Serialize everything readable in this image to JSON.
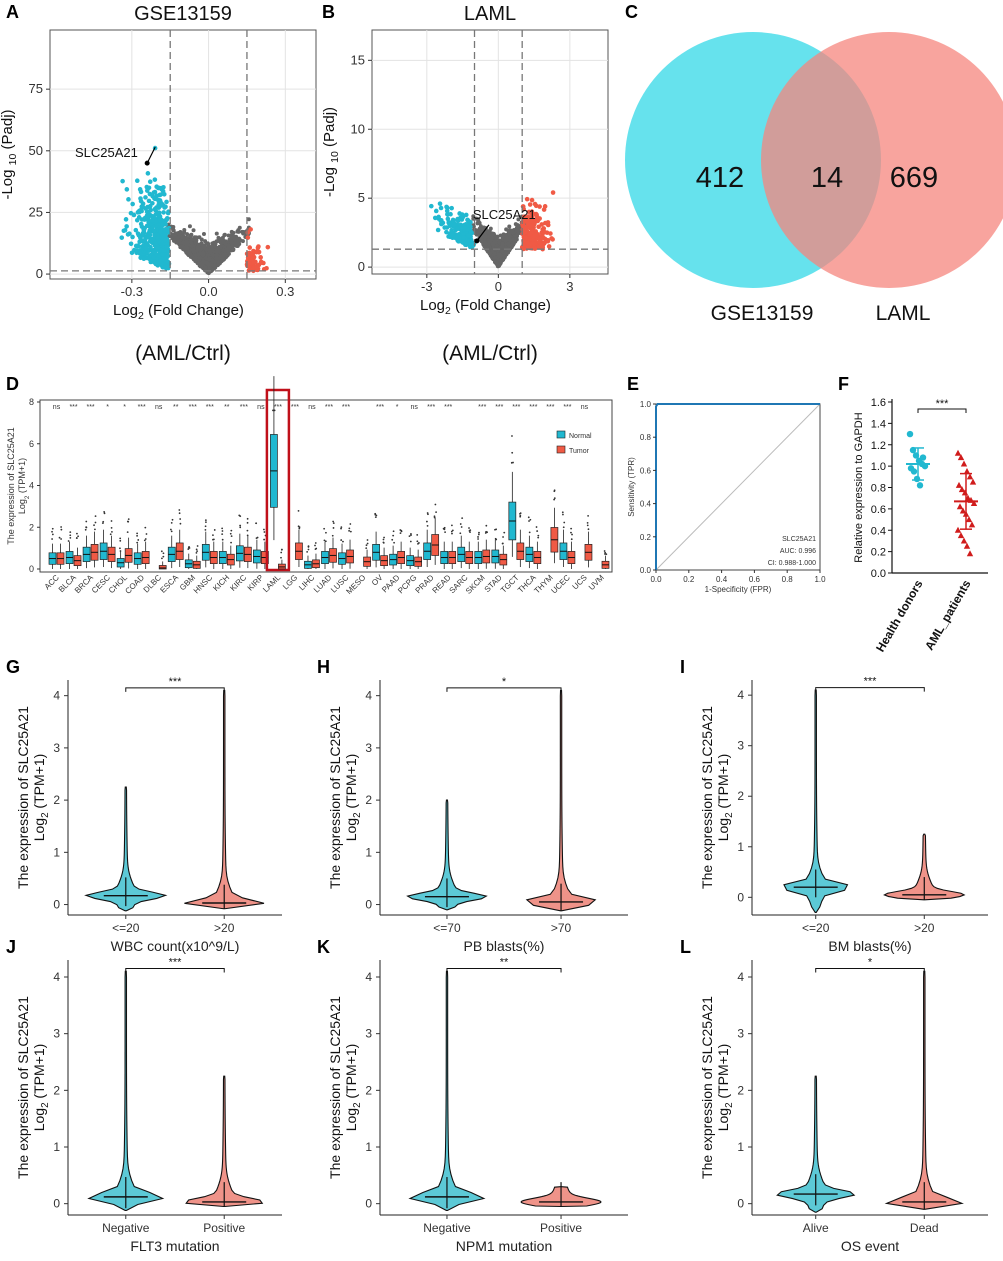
{
  "colors": {
    "cyan": "#21b8d0",
    "red": "#f05a45",
    "grey": "#666666",
    "venn_cyan": "#5ee0ec",
    "venn_red": "#f5857d",
    "violin_cyan": "#5cc9d6",
    "violin_red": "#ef9389",
    "roc_blue": "#1f77b4",
    "darkred": "#c0101a"
  },
  "panel_labels": [
    "A",
    "B",
    "C",
    "D",
    "E",
    "F",
    "G",
    "H",
    "I",
    "J",
    "K",
    "L"
  ],
  "chart_data": [
    {
      "id": "A",
      "type": "scatter",
      "subtitle": "volcano plot",
      "title": "GSE13159",
      "xlabel_pre": "Log",
      "xlabel_sub": "2",
      "xlabel_post": " (Fold Change)",
      "ylabel_pre": "-Log ",
      "ylabel_sub": "10",
      "ylabel_post": " (Padj)",
      "note": "(AML/Ctrl)",
      "x_ticks": [
        "-0.3",
        "0.0",
        "0.3"
      ],
      "x_tick_vals": [
        -0.3,
        0.0,
        0.3
      ],
      "y_ticks": [
        "0",
        "25",
        "50",
        "75"
      ],
      "y_tick_vals": [
        0,
        25,
        50,
        75
      ],
      "xlim": [
        -0.62,
        0.42
      ],
      "ylim": [
        -2,
        99
      ],
      "threshold_x": [
        -0.15,
        0.15
      ],
      "threshold_y": 1.3,
      "annotation": "SLC25A21",
      "annotation_point": [
        -0.24,
        45
      ]
    },
    {
      "id": "B",
      "type": "scatter",
      "subtitle": "volcano plot",
      "title": "LAML",
      "xlabel_pre": "Log",
      "xlabel_sub": "2",
      "xlabel_post": " (Fold Change)",
      "ylabel_pre": "-Log ",
      "ylabel_sub": "10",
      "ylabel_post": " (Padj)",
      "note": "(AML/Ctrl)",
      "x_ticks": [
        "-3",
        "0",
        "3"
      ],
      "x_tick_vals": [
        -3,
        0,
        3
      ],
      "y_ticks": [
        "0",
        "5",
        "10",
        "15"
      ],
      "y_tick_vals": [
        0,
        5,
        10,
        15
      ],
      "xlim": [
        -5.3,
        4.6
      ],
      "ylim": [
        -0.5,
        17.2
      ],
      "threshold_x": [
        -1,
        1
      ],
      "threshold_y": 1.3,
      "annotation": "SLC25A21",
      "annotation_point": [
        -0.9,
        1.9
      ]
    },
    {
      "id": "C",
      "type": "venn",
      "sets": [
        "GSE13159",
        "LAML"
      ],
      "left_only": "412",
      "overlap": "14",
      "right_only": "669"
    },
    {
      "id": "D",
      "type": "box",
      "ylabel_line1": "The expression of SLC25A21",
      "ylabel_line2_pre": "Log",
      "ylabel_line2_sub": "2",
      "ylabel_line2_post": " (TPM+1)",
      "y_ticks": [
        "0",
        "2",
        "4",
        "6",
        "8"
      ],
      "y_tick_vals": [
        0,
        2,
        4,
        6,
        8
      ],
      "ylim": [
        0,
        8
      ],
      "legend": [
        "Normal",
        "Tumor"
      ],
      "highlight": "LAML",
      "categories": [
        "ACC",
        "BLCA",
        "BRCA",
        "CESC",
        "CHOL",
        "COAD",
        "DLBC",
        "ESCA",
        "GBM",
        "HNSC",
        "KICH",
        "KIRC",
        "KIRP",
        "LAML",
        "LGG",
        "LIHC",
        "LUAD",
        "LUSC",
        "MESO",
        "OV",
        "PAAD",
        "PCPG",
        "PRAD",
        "READ",
        "SARC",
        "SKCM",
        "STAD",
        "TGCT",
        "THCA",
        "THYM",
        "UCEC",
        "UCS",
        "UVM"
      ],
      "significance": [
        "ns",
        "***",
        "***",
        "*",
        "*",
        "***",
        "ns",
        "**",
        "***",
        "***",
        "**",
        "***",
        "ns",
        "***",
        "***",
        "ns",
        "***",
        "***",
        "",
        "***",
        "*",
        "ns",
        "***",
        "***",
        "",
        "***",
        "***",
        "***",
        "***",
        "***",
        "***",
        "ns",
        ""
      ],
      "normal_median": [
        0.5,
        0.55,
        0.7,
        0.85,
        0.3,
        0.5,
        null,
        0.7,
        0.25,
        0.8,
        0.55,
        0.75,
        0.6,
        4.7,
        null,
        0.2,
        0.55,
        0.5,
        null,
        0.8,
        0.45,
        0.4,
        0.85,
        0.55,
        0.7,
        0.55,
        0.6,
        2.3,
        0.7,
        null,
        0.85,
        null,
        null
      ],
      "tumor_median": [
        0.5,
        0.4,
        0.8,
        0.7,
        0.65,
        0.55,
        0.05,
        0.85,
        0.2,
        0.55,
        0.45,
        0.7,
        0.55,
        0.1,
        0.85,
        0.25,
        0.65,
        0.6,
        0.35,
        0.4,
        0.55,
        0.35,
        1.15,
        0.55,
        0.55,
        0.6,
        0.45,
        0.85,
        0.55,
        1.4,
        0.55,
        0.8,
        0.2
      ]
    },
    {
      "id": "E",
      "type": "line",
      "xlabel": "1-Specificity (FPR)",
      "ylabel": "Sensitivity (TPR)",
      "x_ticks": [
        "0.0",
        "0.2",
        "0.4",
        "0.6",
        "0.8",
        "1.0"
      ],
      "x_tick_vals": [
        0,
        0.2,
        0.4,
        0.6,
        0.8,
        1.0
      ],
      "y_ticks": [
        "0.0",
        "0.2",
        "0.4",
        "0.6",
        "0.8",
        "1.0"
      ],
      "y_tick_vals": [
        0,
        0.2,
        0.4,
        0.6,
        0.8,
        1.0
      ],
      "x": [
        0,
        0,
        0.01,
        1.0
      ],
      "y": [
        0,
        0.985,
        1.0,
        1.0
      ],
      "legend": [
        "SLC25A21",
        "AUC: 0.996",
        "CI: 0.988-1.000"
      ]
    },
    {
      "id": "F",
      "type": "scatter",
      "subtitle": "dot plot with mean and SD",
      "ylabel": "Relative expression to GAPDH",
      "y_ticks": [
        "0.0",
        "0.2",
        "0.4",
        "0.6",
        "0.8",
        "1.0",
        "1.2",
        "1.4",
        "1.6"
      ],
      "y_tick_vals": [
        0,
        0.2,
        0.4,
        0.6,
        0.8,
        1.0,
        1.2,
        1.4,
        1.6
      ],
      "ylim": [
        0,
        1.6
      ],
      "categories": [
        "Health donors",
        "AML_patients"
      ],
      "significance": "***",
      "groups": [
        {
          "name": "Health donors",
          "mean": 1.02,
          "sd": 0.15,
          "values": [
            1.3,
            1.15,
            1.1,
            1.05,
            1.02,
            1.0,
            0.98,
            0.95,
            0.88,
            0.82,
            1.08
          ]
        },
        {
          "name": "AML_patients",
          "mean": 0.67,
          "sd": 0.26,
          "values": [
            1.12,
            1.08,
            1.02,
            0.95,
            0.9,
            0.85,
            0.82,
            0.78,
            0.75,
            0.7,
            0.68,
            0.65,
            0.62,
            0.58,
            0.55,
            0.5,
            0.45,
            0.4,
            0.35,
            0.3,
            0.25,
            0.18
          ]
        }
      ]
    },
    {
      "id": "G",
      "type": "violin",
      "ylabel_line1": "The expression of SLC25A21",
      "ylabel_line2_pre": "Log",
      "ylabel_line2_sub": "2",
      "ylabel_line2_post": " (TPM+1)",
      "xlabel": "WBC count(x10^9/L)",
      "categories": [
        "<=20",
        ">20"
      ],
      "significance": "***",
      "y_ticks": [
        "0",
        "1",
        "2",
        "3",
        "4"
      ],
      "ylim": [
        -0.2,
        4.3
      ],
      "medians": [
        0.17,
        0.03
      ],
      "maxima": [
        2.25,
        4.1
      ],
      "minima": [
        -0.12,
        -0.08
      ]
    },
    {
      "id": "H",
      "type": "violin",
      "ylabel_line1": "The expression of SLC25A21",
      "ylabel_line2_pre": "Log",
      "ylabel_line2_sub": "2",
      "ylabel_line2_post": " (TPM+1)",
      "xlabel": "PB blasts(%)",
      "categories": [
        "<=70",
        ">70"
      ],
      "significance": "*",
      "y_ticks": [
        "0",
        "1",
        "2",
        "3",
        "4"
      ],
      "ylim": [
        -0.2,
        4.3
      ],
      "medians": [
        0.15,
        0.05
      ],
      "maxima": [
        2.0,
        4.1
      ],
      "minima": [
        -0.1,
        -0.12
      ]
    },
    {
      "id": "I",
      "type": "violin",
      "ylabel_line1": "The expression of SLC25A21",
      "ylabel_line2_pre": "Log",
      "ylabel_line2_sub": "2",
      "ylabel_line2_post": " (TPM+1)",
      "xlabel": "BM blasts(%)",
      "categories": [
        "<=20",
        ">20"
      ],
      "significance": "***",
      "y_ticks": [
        "0",
        "1",
        "2",
        "3",
        "4"
      ],
      "ylim": [
        -0.35,
        4.3
      ],
      "medians": [
        0.2,
        0.05
      ],
      "maxima": [
        4.1,
        1.25
      ],
      "minima": [
        -0.3,
        -0.05
      ]
    },
    {
      "id": "J",
      "type": "violin",
      "ylabel_line1": "The expression of SLC25A21",
      "ylabel_line2_pre": "Log",
      "ylabel_line2_sub": "2",
      "ylabel_line2_post": " (TPM+1)",
      "xlabel": "FLT3 mutation",
      "categories": [
        "Negative",
        "Positive"
      ],
      "significance": "***",
      "y_ticks": [
        "0",
        "1",
        "2",
        "3",
        "4"
      ],
      "ylim": [
        -0.2,
        4.3
      ],
      "medians": [
        0.12,
        0.03
      ],
      "maxima": [
        4.1,
        2.25
      ],
      "minima": [
        -0.12,
        -0.05
      ]
    },
    {
      "id": "K",
      "type": "violin",
      "ylabel_line1": "The expression of SLC25A21",
      "ylabel_line2_pre": "Log",
      "ylabel_line2_sub": "2",
      "ylabel_line2_post": " (TPM+1)",
      "xlabel": "NPM1 mutation",
      "categories": [
        "Negative",
        "Positive"
      ],
      "significance": "**",
      "y_ticks": [
        "0",
        "1",
        "2",
        "3",
        "4"
      ],
      "ylim": [
        -0.2,
        4.3
      ],
      "medians": [
        0.12,
        0.03
      ],
      "maxima": [
        4.1,
        0.3
      ],
      "minima": [
        -0.12,
        -0.05
      ]
    },
    {
      "id": "L",
      "type": "violin",
      "ylabel_line1": "The expression of SLC25A21",
      "ylabel_line2_pre": "Log",
      "ylabel_line2_sub": "2",
      "ylabel_line2_post": " (TPM+1)",
      "xlabel": "OS event",
      "categories": [
        "Alive",
        "Dead"
      ],
      "significance": "*",
      "y_ticks": [
        "0",
        "1",
        "2",
        "3",
        "4"
      ],
      "ylim": [
        -0.2,
        4.3
      ],
      "medians": [
        0.17,
        0.03
      ],
      "maxima": [
        2.25,
        4.1
      ],
      "minima": [
        -0.15,
        -0.1
      ]
    }
  ]
}
